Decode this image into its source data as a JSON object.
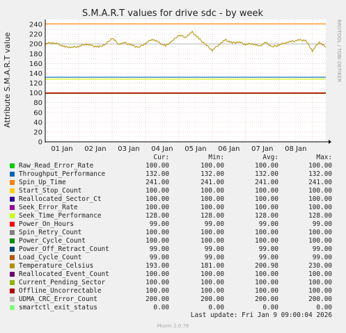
{
  "page": {
    "title": "S.M.A.R.T values for drive sdc - by week",
    "side_label": "RRDTOOL / TOBI OETIKER",
    "ylabel": "Attribute S.M.A.R.T value",
    "footer": "Last update: Fri Jan  9 09:00:04 2026",
    "version": "Munin 2.0.76"
  },
  "legend_headers": {
    "cur": "Cur:",
    "min": "Min:",
    "avg": "Avg:",
    "max": "Max:"
  },
  "legend": [
    {
      "name": "Raw_Read_Error_Rate",
      "color": "#00CC00",
      "cur": "100.00",
      "min": "100.00",
      "avg": "100.00",
      "max": "100.00"
    },
    {
      "name": "Throughput_Performance",
      "color": "#0066B3",
      "cur": "132.00",
      "min": "132.00",
      "avg": "132.00",
      "max": "132.00"
    },
    {
      "name": "Spin_Up_Time",
      "color": "#FF8000",
      "cur": "241.00",
      "min": "241.00",
      "avg": "241.00",
      "max": "241.00"
    },
    {
      "name": "Start_Stop_Count",
      "color": "#FFCC00",
      "cur": "100.00",
      "min": "100.00",
      "avg": "100.00",
      "max": "100.00"
    },
    {
      "name": "Reallocated_Sector_Ct",
      "color": "#330099",
      "cur": "100.00",
      "min": "100.00",
      "avg": "100.00",
      "max": "100.00"
    },
    {
      "name": "Seek_Error_Rate",
      "color": "#990099",
      "cur": "100.00",
      "min": "100.00",
      "avg": "100.00",
      "max": "100.00"
    },
    {
      "name": "Seek_Time_Performance",
      "color": "#CCFF00",
      "cur": "128.00",
      "min": "128.00",
      "avg": "128.00",
      "max": "128.00"
    },
    {
      "name": "Power_On_Hours",
      "color": "#FF0000",
      "cur": "99.00",
      "min": "99.00",
      "avg": "99.00",
      "max": "99.00"
    },
    {
      "name": "Spin_Retry_Count",
      "color": "#808080",
      "cur": "100.00",
      "min": "100.00",
      "avg": "100.00",
      "max": "100.00"
    },
    {
      "name": "Power_Cycle_Count",
      "color": "#008F00",
      "cur": "100.00",
      "min": "100.00",
      "avg": "100.00",
      "max": "100.00"
    },
    {
      "name": "Power_Off_Retract_Count",
      "color": "#00487D",
      "cur": "99.00",
      "min": "99.00",
      "avg": "99.00",
      "max": "99.00"
    },
    {
      "name": "Load_Cycle_Count",
      "color": "#B35A00",
      "cur": "99.00",
      "min": "99.00",
      "avg": "99.00",
      "max": "99.00"
    },
    {
      "name": "Temperature_Celsius",
      "color": "#B38F00",
      "cur": "193.00",
      "min": "181.00",
      "avg": "200.98",
      "max": "230.00"
    },
    {
      "name": "Reallocated_Event_Count",
      "color": "#6B006B",
      "cur": "100.00",
      "min": "100.00",
      "avg": "100.00",
      "max": "100.00"
    },
    {
      "name": "Current_Pending_Sector",
      "color": "#8FB300",
      "cur": "100.00",
      "min": "100.00",
      "avg": "100.00",
      "max": "100.00"
    },
    {
      "name": "Offline_Uncorrectable",
      "color": "#B30000",
      "cur": "100.00",
      "min": "100.00",
      "avg": "100.00",
      "max": "100.00"
    },
    {
      "name": "UDMA_CRC_Error_Count",
      "color": "#BEBEBE",
      "cur": "200.00",
      "min": "200.00",
      "avg": "200.00",
      "max": "200.00"
    },
    {
      "name": "smartctl_exit_status",
      "color": "#80FF80",
      "cur": "0.00",
      "min": "0.00",
      "avg": "0.00",
      "max": "0.00"
    }
  ],
  "chart_data": {
    "type": "line",
    "title": "S.M.A.R.T values for drive sdc - by week",
    "ylabel": "Attribute S.M.A.R.T value",
    "xlabel": "",
    "ylim": [
      0,
      250
    ],
    "yticks": [
      0,
      20,
      40,
      60,
      80,
      100,
      120,
      140,
      160,
      180,
      200,
      220,
      240
    ],
    "xticks": [
      "01 Jan",
      "02 Jan",
      "03 Jan",
      "04 Jan",
      "05 Jan",
      "06 Jan",
      "07 Jan",
      "08 Jan"
    ],
    "xrange_days": [
      0,
      8.4
    ],
    "grid": true,
    "constant_series": [
      {
        "name": "Spin_Up_Time",
        "color": "#FF8000",
        "value": 241
      },
      {
        "name": "UDMA_CRC_Error_Count",
        "color": "#BEBEBE",
        "value": 200
      },
      {
        "name": "Throughput_Performance",
        "color": "#0066B3",
        "value": 132
      },
      {
        "name": "Seek_Time_Performance",
        "color": "#CCFF00",
        "value": 128
      },
      {
        "name": "Raw_Read_Error_Rate",
        "color": "#00CC00",
        "value": 100
      },
      {
        "name": "Start_Stop_Count",
        "color": "#FFCC00",
        "value": 100
      },
      {
        "name": "Reallocated_Sector_Ct",
        "color": "#330099",
        "value": 100
      },
      {
        "name": "Seek_Error_Rate",
        "color": "#990099",
        "value": 100
      },
      {
        "name": "Spin_Retry_Count",
        "color": "#808080",
        "value": 100
      },
      {
        "name": "Power_Cycle_Count",
        "color": "#008F00",
        "value": 100
      },
      {
        "name": "Reallocated_Event_Count",
        "color": "#6B006B",
        "value": 100
      },
      {
        "name": "Current_Pending_Sector",
        "color": "#8FB300",
        "value": 100
      },
      {
        "name": "Power_On_Hours",
        "color": "#FF0000",
        "value": 99
      },
      {
        "name": "Power_Off_Retract_Count",
        "color": "#00487D",
        "value": 99
      },
      {
        "name": "Load_Cycle_Count",
        "color": "#B35A00",
        "value": 99
      },
      {
        "name": "Offline_Uncorrectable",
        "color": "#B30000",
        "value": 100
      },
      {
        "name": "smartctl_exit_status",
        "color": "#80FF80",
        "value": 0
      }
    ],
    "temperature_series": {
      "name": "Temperature_Celsius",
      "color": "#B38F00",
      "x_days": [
        0,
        0.2,
        0.4,
        0.6,
        0.8,
        1.0,
        1.2,
        1.4,
        1.6,
        1.8,
        2.0,
        2.2,
        2.4,
        2.6,
        2.8,
        3.0,
        3.2,
        3.4,
        3.6,
        3.8,
        4.0,
        4.2,
        4.4,
        4.6,
        4.8,
        5.0,
        5.2,
        5.4,
        5.6,
        5.8,
        6.0,
        6.2,
        6.4,
        6.6,
        6.8,
        7.0,
        7.2,
        7.4,
        7.6,
        7.8,
        8.0,
        8.2,
        8.4
      ],
      "values": [
        200,
        203,
        199,
        194,
        193,
        195,
        200,
        196,
        194,
        199,
        212,
        200,
        202,
        197,
        193,
        201,
        210,
        203,
        196,
        206,
        218,
        214,
        224,
        211,
        199,
        187,
        199,
        208,
        202,
        204,
        199,
        201,
        195,
        203,
        194,
        198,
        203,
        205,
        208,
        207,
        186,
        204,
        193
      ]
    }
  }
}
